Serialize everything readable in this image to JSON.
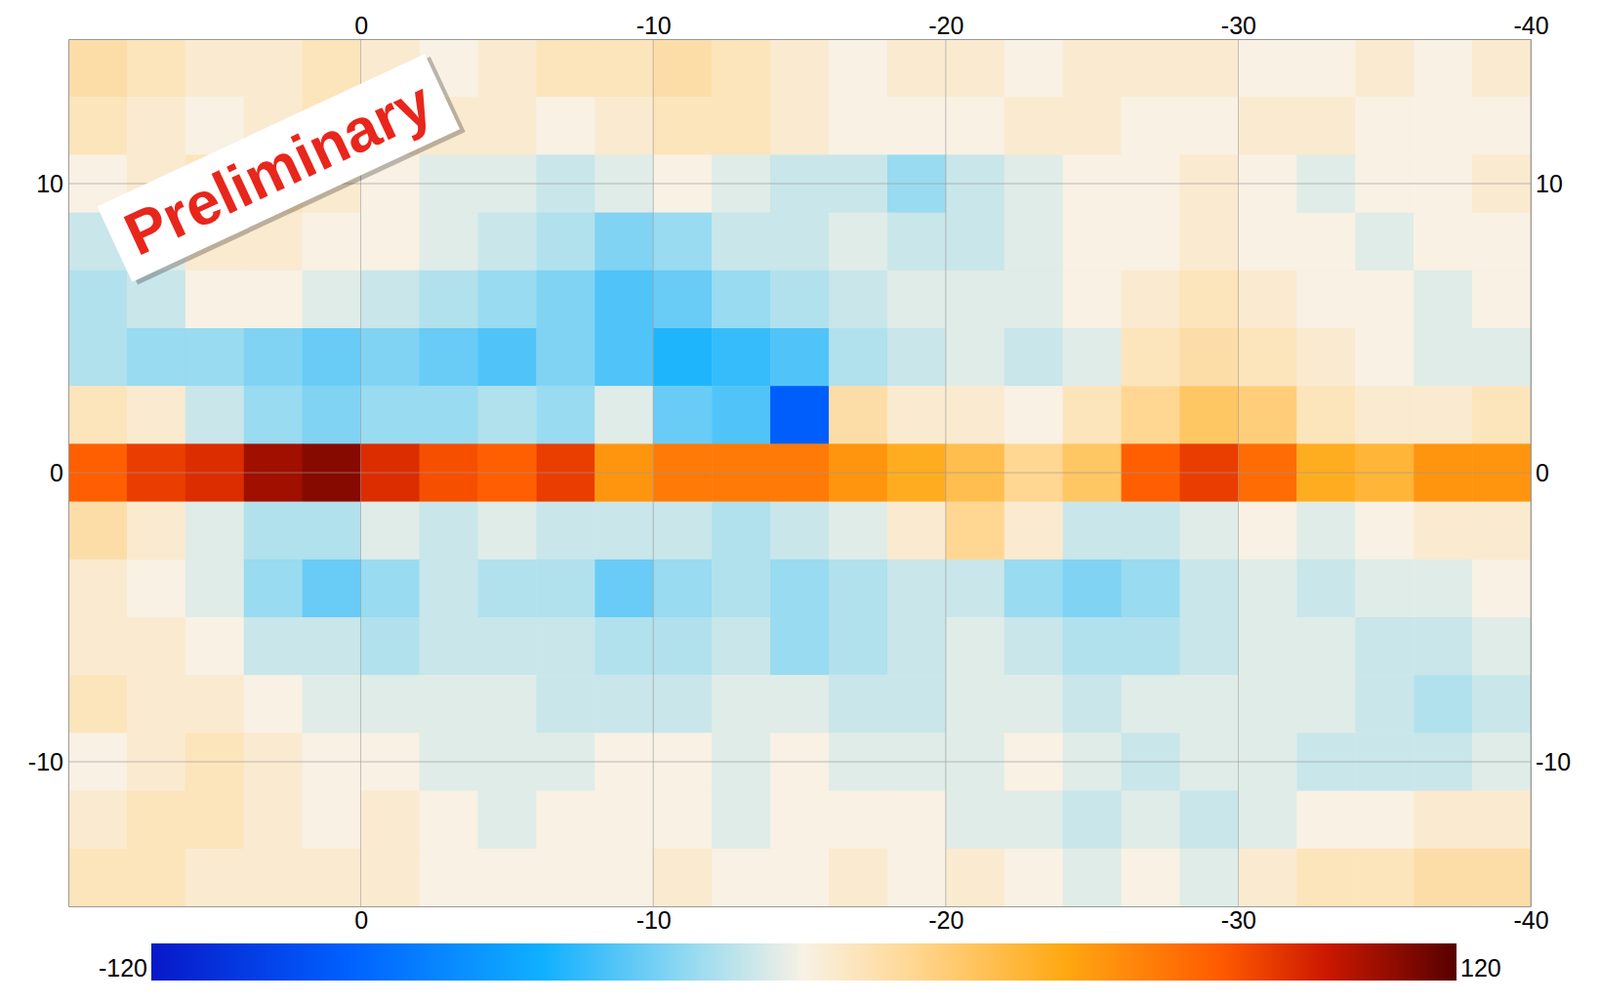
{
  "chart_data": {
    "type": "heatmap",
    "x": [
      9,
      7,
      5,
      3,
      1,
      -1,
      -3,
      -5,
      -7,
      -9,
      -11,
      -13,
      -15,
      -17,
      -19,
      -21,
      -23,
      -25,
      -27,
      -29,
      -31,
      -33,
      -35,
      -37,
      -39
    ],
    "y": [
      14,
      12,
      10,
      8,
      6,
      4,
      2,
      0,
      -2,
      -4,
      -6,
      -8,
      -10,
      -12,
      -14
    ],
    "values": [
      [
        15,
        10,
        5,
        5,
        10,
        5,
        0,
        5,
        10,
        10,
        15,
        10,
        5,
        0,
        5,
        5,
        0,
        5,
        5,
        5,
        0,
        0,
        5,
        0,
        5
      ],
      [
        10,
        5,
        0,
        5,
        10,
        10,
        5,
        5,
        0,
        5,
        10,
        10,
        5,
        0,
        0,
        0,
        5,
        5,
        0,
        0,
        5,
        5,
        0,
        0,
        0
      ],
      [
        0,
        5,
        10,
        10,
        5,
        0,
        -5,
        -5,
        -10,
        -5,
        0,
        -5,
        -10,
        -10,
        -20,
        -10,
        -5,
        0,
        0,
        5,
        0,
        -5,
        0,
        0,
        5
      ],
      [
        -10,
        -5,
        5,
        5,
        0,
        0,
        -5,
        -10,
        -15,
        -25,
        -20,
        -10,
        -10,
        -5,
        -10,
        -10,
        -5,
        0,
        0,
        5,
        0,
        0,
        -5,
        0,
        0
      ],
      [
        -15,
        -10,
        0,
        0,
        -5,
        -10,
        -15,
        -20,
        -25,
        -35,
        -30,
        -20,
        -15,
        -10,
        -5,
        -5,
        -5,
        0,
        5,
        10,
        5,
        0,
        0,
        -5,
        0
      ],
      [
        -15,
        -20,
        -20,
        -25,
        -30,
        -25,
        -30,
        -35,
        -25,
        -35,
        -45,
        -40,
        -35,
        -15,
        -10,
        -5,
        -10,
        -5,
        10,
        15,
        10,
        5,
        0,
        -5,
        -5
      ],
      [
        10,
        5,
        -10,
        -20,
        -25,
        -20,
        -20,
        -15,
        -20,
        -5,
        -30,
        -35,
        -85,
        15,
        5,
        5,
        0,
        10,
        20,
        30,
        25,
        10,
        5,
        5,
        10
      ],
      [
        75,
        85,
        90,
        105,
        110,
        90,
        80,
        75,
        85,
        55,
        65,
        65,
        65,
        55,
        45,
        35,
        20,
        30,
        75,
        85,
        70,
        45,
        40,
        55,
        55
      ],
      [
        15,
        5,
        -5,
        -15,
        -15,
        -5,
        -10,
        -5,
        -10,
        -10,
        -10,
        -15,
        -10,
        -5,
        5,
        20,
        5,
        -10,
        -10,
        -5,
        0,
        -5,
        0,
        5,
        5
      ],
      [
        5,
        0,
        -5,
        -20,
        -30,
        -20,
        -10,
        -15,
        -15,
        -30,
        -20,
        -15,
        -20,
        -15,
        -10,
        -10,
        -20,
        -25,
        -20,
        -10,
        -5,
        -10,
        -5,
        -5,
        0
      ],
      [
        5,
        5,
        0,
        -10,
        -10,
        -15,
        -10,
        -10,
        -10,
        -15,
        -15,
        -10,
        -20,
        -15,
        -10,
        -5,
        -10,
        -15,
        -15,
        -10,
        -5,
        -5,
        -10,
        -10,
        -5
      ],
      [
        10,
        5,
        5,
        0,
        -5,
        -5,
        -5,
        -5,
        -10,
        -10,
        -10,
        -5,
        -5,
        -10,
        -10,
        -5,
        -5,
        -10,
        -5,
        -5,
        -5,
        -5,
        -10,
        -15,
        -10
      ],
      [
        0,
        5,
        10,
        5,
        0,
        0,
        -5,
        -5,
        -5,
        0,
        0,
        -5,
        0,
        -5,
        -5,
        -5,
        0,
        -5,
        -10,
        -5,
        -5,
        -10,
        -10,
        -10,
        -5
      ],
      [
        5,
        10,
        10,
        5,
        0,
        5,
        0,
        -5,
        0,
        0,
        0,
        -5,
        0,
        0,
        0,
        -5,
        -5,
        -10,
        -5,
        -10,
        -5,
        0,
        0,
        5,
        5
      ],
      [
        10,
        10,
        5,
        5,
        5,
        5,
        0,
        0,
        0,
        0,
        5,
        0,
        0,
        5,
        0,
        5,
        0,
        -5,
        0,
        -5,
        5,
        10,
        10,
        15,
        15
      ]
    ],
    "xlim": [
      10,
      -40
    ],
    "ylim": [
      -15,
      15
    ],
    "xticks": [
      0,
      -10,
      -20,
      -30,
      -40
    ],
    "yticks": [
      -10,
      0,
      10
    ],
    "grid": true,
    "colorbar": {
      "range": [
        -120,
        120
      ],
      "ticks": [
        -120,
        120
      ]
    },
    "annotations": [
      {
        "text": "Preliminary"
      }
    ]
  }
}
